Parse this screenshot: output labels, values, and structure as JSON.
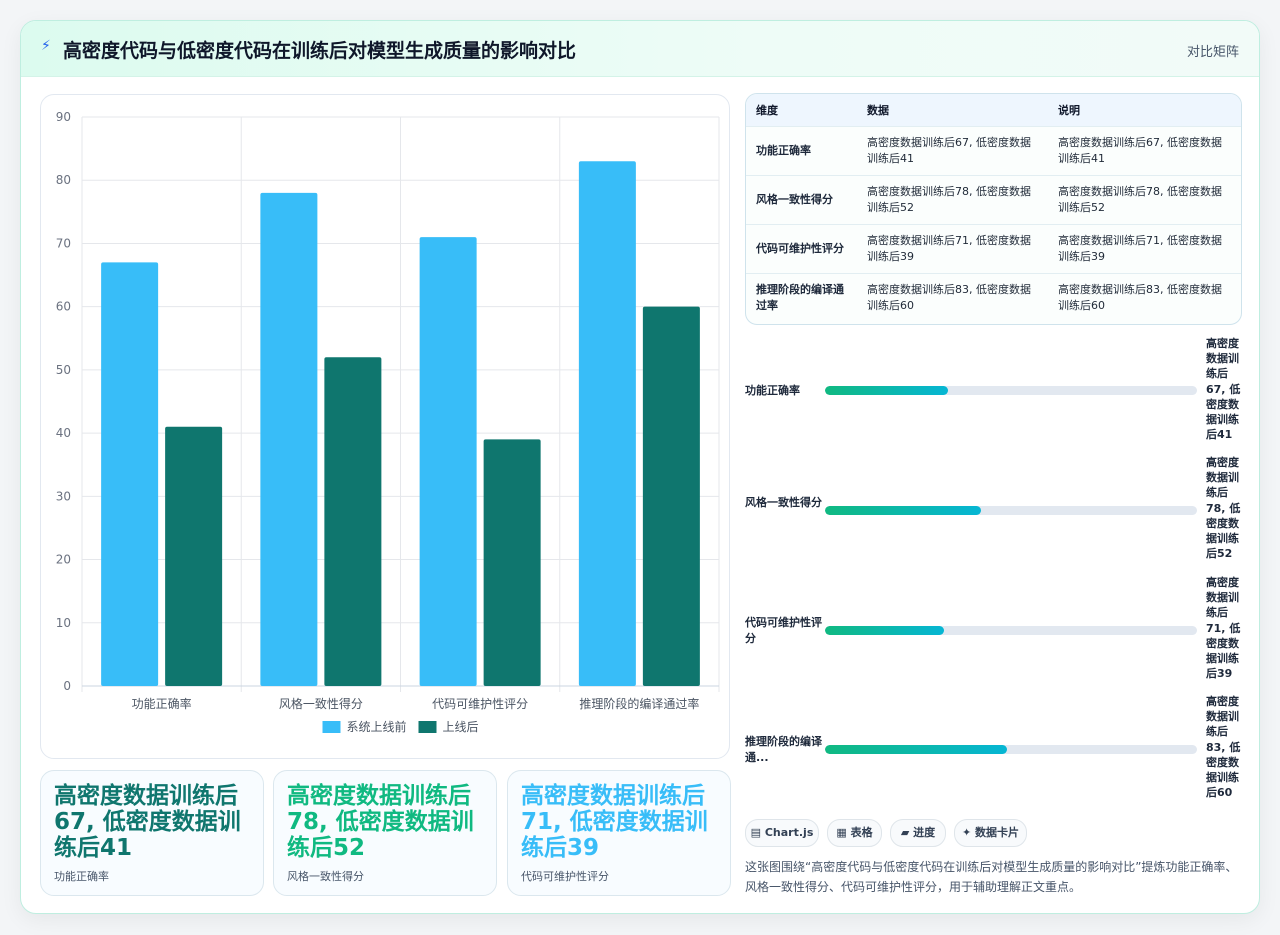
{
  "header": {
    "title": "高密度代码与低密度代码在训练后对模型生成质量的影响对比",
    "tag": "对比矩阵",
    "bolt_icon": "lightning-icon"
  },
  "chart_data": {
    "type": "bar",
    "categories": [
      "功能正确率",
      "风格一致性得分",
      "代码可维护性评分",
      "推理阶段的编译通过率"
    ],
    "series": [
      {
        "name": "系统上线前",
        "color": "#38bdf8",
        "values": [
          67,
          78,
          71,
          83
        ]
      },
      {
        "name": "上线后",
        "color": "#0f766e",
        "values": [
          41,
          52,
          39,
          60
        ]
      }
    ],
    "yticks": [
      "0",
      "10",
      "20",
      "30",
      "40",
      "50",
      "60",
      "70",
      "80",
      "90"
    ],
    "ylim": [
      0,
      90
    ],
    "grid": true,
    "legend": "bottom"
  },
  "stats": [
    {
      "value": "高密度数据训练后67, 低密度数据训练后41",
      "label": "功能正确率",
      "color": "#0f766e"
    },
    {
      "value": "高密度数据训练后78, 低密度数据训练后52",
      "label": "风格一致性得分",
      "color": "#10b981"
    },
    {
      "value": "高密度数据训练后71, 低密度数据训练后39",
      "label": "代码可维护性评分",
      "color": "#38bdf8"
    }
  ],
  "table": {
    "headers": [
      "维度",
      "数据",
      "说明"
    ],
    "rows": [
      {
        "dim": "功能正确率",
        "data": "高密度数据训练后67, 低密度数据训练后41",
        "note": "高密度数据训练后67, 低密度数据训练后41"
      },
      {
        "dim": "风格一致性得分",
        "data": "高密度数据训练后78, 低密度数据训练后52",
        "note": "高密度数据训练后78, 低密度数据训练后52"
      },
      {
        "dim": "代码可维护性评分",
        "data": "高密度数据训练后71, 低密度数据训练后39",
        "note": "高密度数据训练后71, 低密度数据训练后39"
      },
      {
        "dim": "推理阶段的编译通过率",
        "data": "高密度数据训练后83, 低密度数据训练后60",
        "note": "高密度数据训练后83, 低密度数据训练后60"
      }
    ]
  },
  "progress": [
    {
      "label": "功能正确率",
      "value": "高密度数据训练后67, 低密度数据训练后41",
      "fill": 0.33
    },
    {
      "label": "风格一致性得分",
      "value": "高密度数据训练后78, 低密度数据训练后52",
      "fill": 0.42
    },
    {
      "label": "代码可维护性评分",
      "value": "高密度数据训练后71, 低密度数据训练后39",
      "fill": 0.32
    },
    {
      "label": "推理阶段的编译通...",
      "value": "高密度数据训练后83, 低密度数据训练后60",
      "fill": 0.49
    }
  ],
  "pills": [
    {
      "label": "Chart.js",
      "icon": "chart-icon",
      "glyph": "▤"
    },
    {
      "label": "表格",
      "icon": "table-icon",
      "glyph": "▦"
    },
    {
      "label": "进度",
      "icon": "progress-icon",
      "glyph": "▰"
    },
    {
      "label": "数据卡片",
      "icon": "sparkle-icon",
      "glyph": "✦"
    }
  ],
  "note": "这张图围绕“高密度代码与低密度代码在训练后对模型生成质量的影响对比”提炼功能正确率、风格一致性得分、代码可维护性评分，用于辅助理解正文重点。"
}
